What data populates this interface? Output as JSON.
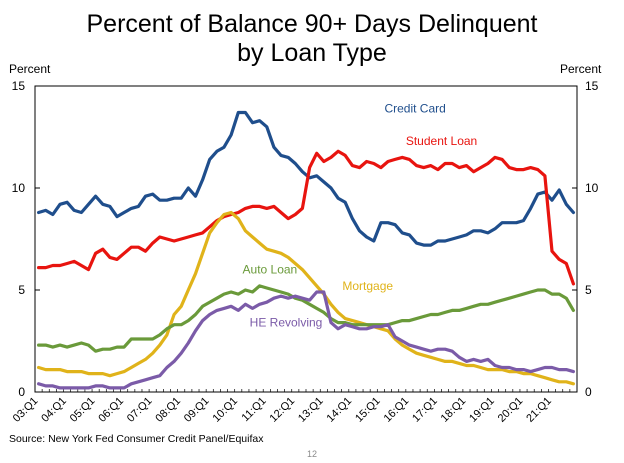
{
  "chart_data": {
    "type": "line",
    "title": "Percent of Balance 90+ Days Delinquent",
    "subtitle": "by Loan Type",
    "ylabel_left": "Percent",
    "ylabel_right": "Percent",
    "ylim": [
      0,
      15
    ],
    "yticks": [
      0,
      5,
      10,
      15
    ],
    "quarter_count": 76,
    "xtick_labels": [
      "03:Q1",
      "04:Q1",
      "05:Q1",
      "06:Q1",
      "07:Q1",
      "08:Q1",
      "09:Q1",
      "10:Q1",
      "11:Q1",
      "12:Q1",
      "13:Q1",
      "14:Q1",
      "15:Q1",
      "16:Q1",
      "17:Q1",
      "18:Q1",
      "19:Q1",
      "20:Q1",
      "21:Q1"
    ],
    "source": "Source: New York Fed Consumer Credit Panel/Equifax",
    "page_number": "12",
    "series": [
      {
        "name": "Credit Card",
        "color": "#1f4e8c",
        "values": [
          8.8,
          8.9,
          8.7,
          9.2,
          9.3,
          8.9,
          8.8,
          9.2,
          9.6,
          9.2,
          9.1,
          8.6,
          8.8,
          9.0,
          9.1,
          9.6,
          9.7,
          9.4,
          9.4,
          9.5,
          9.5,
          10.0,
          9.6,
          10.4,
          11.4,
          11.8,
          12.0,
          12.6,
          13.7,
          13.7,
          13.2,
          13.3,
          13.0,
          12.0,
          11.6,
          11.5,
          11.2,
          10.8,
          10.5,
          10.6,
          10.3,
          10.0,
          9.5,
          9.3,
          8.5,
          7.9,
          7.6,
          7.4,
          8.3,
          8.3,
          8.2,
          7.8,
          7.7,
          7.3,
          7.2,
          7.2,
          7.4,
          7.4,
          7.5,
          7.6,
          7.7,
          7.9,
          7.9,
          7.8,
          8.0,
          8.3,
          8.3,
          8.3,
          8.4,
          9.0,
          9.7,
          9.8,
          9.4,
          9.9,
          9.2,
          8.8
        ]
      },
      {
        "name": "Student Loan",
        "color": "#e8140f",
        "values": [
          6.1,
          6.1,
          6.2,
          6.2,
          6.3,
          6.4,
          6.2,
          6.0,
          6.8,
          7.0,
          6.6,
          6.5,
          6.8,
          7.1,
          7.1,
          6.9,
          7.3,
          7.6,
          7.5,
          7.4,
          7.5,
          7.6,
          7.7,
          7.8,
          8.1,
          8.4,
          8.6,
          8.7,
          8.8,
          9.0,
          9.1,
          9.1,
          9.0,
          9.1,
          8.8,
          8.5,
          8.7,
          9.0,
          11.0,
          11.7,
          11.3,
          11.5,
          11.8,
          11.6,
          11.1,
          11.0,
          11.3,
          11.2,
          11.0,
          11.3,
          11.4,
          11.5,
          11.4,
          11.1,
          11.0,
          11.1,
          10.9,
          11.2,
          11.2,
          11.0,
          11.1,
          10.8,
          11.0,
          11.2,
          11.5,
          11.4,
          11.0,
          10.9,
          10.9,
          11.0,
          10.9,
          10.6,
          6.9,
          6.5,
          6.3,
          5.3
        ]
      },
      {
        "name": "Mortgage",
        "color": "#e0b31a",
        "values": [
          1.2,
          1.1,
          1.1,
          1.1,
          1.0,
          1.0,
          1.0,
          0.9,
          0.9,
          0.9,
          0.8,
          0.9,
          1.0,
          1.2,
          1.4,
          1.6,
          1.9,
          2.3,
          2.8,
          3.8,
          4.2,
          5.0,
          5.8,
          6.8,
          7.8,
          8.3,
          8.7,
          8.8,
          8.5,
          7.9,
          7.6,
          7.3,
          7.0,
          6.9,
          6.8,
          6.6,
          6.3,
          6.0,
          5.6,
          5.2,
          4.8,
          4.3,
          3.9,
          3.6,
          3.5,
          3.4,
          3.3,
          3.2,
          3.1,
          3.0,
          2.6,
          2.3,
          2.1,
          1.9,
          1.8,
          1.7,
          1.6,
          1.5,
          1.5,
          1.4,
          1.3,
          1.3,
          1.2,
          1.1,
          1.1,
          1.1,
          1.0,
          1.0,
          0.9,
          0.9,
          0.8,
          0.7,
          0.6,
          0.5,
          0.5,
          0.4
        ]
      },
      {
        "name": "Auto Loan",
        "color": "#6a9a3a",
        "values": [
          2.3,
          2.3,
          2.2,
          2.3,
          2.2,
          2.3,
          2.4,
          2.3,
          2.0,
          2.1,
          2.1,
          2.2,
          2.2,
          2.6,
          2.6,
          2.6,
          2.6,
          2.8,
          3.1,
          3.3,
          3.3,
          3.5,
          3.8,
          4.2,
          4.4,
          4.6,
          4.8,
          4.9,
          4.8,
          5.0,
          4.9,
          5.2,
          5.1,
          5.0,
          4.9,
          4.8,
          4.6,
          4.5,
          4.3,
          4.1,
          3.9,
          3.6,
          3.4,
          3.4,
          3.3,
          3.3,
          3.3,
          3.3,
          3.3,
          3.3,
          3.4,
          3.5,
          3.5,
          3.6,
          3.7,
          3.8,
          3.8,
          3.9,
          4.0,
          4.0,
          4.1,
          4.2,
          4.3,
          4.3,
          4.4,
          4.5,
          4.6,
          4.7,
          4.8,
          4.9,
          5.0,
          5.0,
          4.8,
          4.8,
          4.6,
          4.0
        ]
      },
      {
        "name": "HE Revolving",
        "color": "#7b5ba8",
        "values": [
          0.4,
          0.3,
          0.3,
          0.2,
          0.2,
          0.2,
          0.2,
          0.2,
          0.3,
          0.3,
          0.2,
          0.2,
          0.2,
          0.4,
          0.5,
          0.6,
          0.7,
          0.8,
          1.2,
          1.5,
          1.9,
          2.4,
          3.0,
          3.5,
          3.8,
          4.0,
          4.1,
          4.2,
          4.0,
          4.3,
          4.1,
          4.3,
          4.4,
          4.6,
          4.7,
          4.6,
          4.7,
          4.6,
          4.5,
          4.9,
          4.9,
          3.4,
          3.1,
          3.3,
          3.2,
          3.1,
          3.1,
          3.2,
          3.2,
          3.3,
          2.7,
          2.5,
          2.3,
          2.2,
          2.1,
          2.0,
          2.1,
          2.1,
          2.0,
          1.7,
          1.5,
          1.6,
          1.5,
          1.6,
          1.3,
          1.2,
          1.2,
          1.1,
          1.1,
          1.0,
          1.1,
          1.2,
          1.2,
          1.1,
          1.1,
          1.0
        ]
      }
    ],
    "annotations": [
      {
        "text": "Credit Card",
        "series": "Credit Card",
        "color": "#1f4e8c",
        "q": 48.5,
        "y": 13.7
      },
      {
        "text": "Student Loan",
        "series": "Student Loan",
        "color": "#e8140f",
        "q": 51.5,
        "y": 12.1
      },
      {
        "text": "Auto Loan",
        "series": "Auto Loan",
        "color": "#6a9a3a",
        "q": 28.6,
        "y": 5.8
      },
      {
        "text": "Mortgage",
        "series": "Mortgage",
        "color": "#e0b31a",
        "q": 42.6,
        "y": 5.0
      },
      {
        "text": "HE Revolving",
        "series": "HE Revolving",
        "color": "#7b5ba8",
        "q": 29.6,
        "y": 3.2
      }
    ]
  }
}
